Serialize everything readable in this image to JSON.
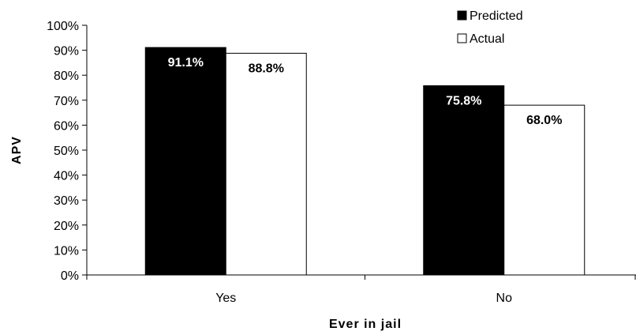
{
  "chart_data": {
    "type": "bar",
    "categories": [
      "Yes",
      "No"
    ],
    "series": [
      {
        "name": "Predicted",
        "values": [
          0.911,
          0.758
        ],
        "labels": [
          "91.1%",
          "75.8%"
        ],
        "fill": "#000000",
        "label_color": "#ffffff"
      },
      {
        "name": "Actual",
        "values": [
          0.888,
          0.68
        ],
        "labels": [
          "88.8%",
          "68.0%"
        ],
        "fill": "#ffffff",
        "label_color": "#000000"
      }
    ],
    "xlabel": "Ever in jail",
    "ylabel": "APV",
    "ylim": [
      0,
      1
    ],
    "yticks": [
      0,
      0.1,
      0.2,
      0.3,
      0.4,
      0.5,
      0.6,
      0.7,
      0.8,
      0.9,
      1.0
    ],
    "ytick_labels": [
      "0%",
      "10%",
      "20%",
      "30%",
      "40%",
      "50%",
      "60%",
      "70%",
      "80%",
      "90%",
      "100%"
    ],
    "grid": false,
    "legend_position": "top-right"
  }
}
